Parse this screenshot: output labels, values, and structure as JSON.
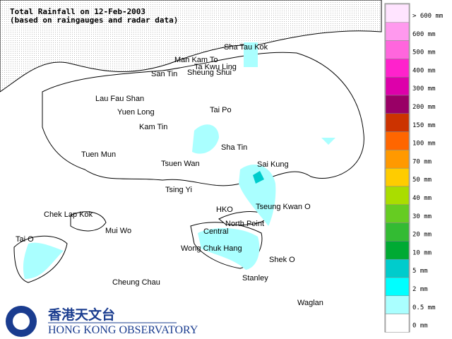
{
  "title": {
    "line1": "Total Rainfall on 12-Feb-2003",
    "line2": "(based on raingauges and radar data)"
  },
  "places": [
    {
      "label": "Sha Tau Kok"
    },
    {
      "label": "Man Kam To"
    },
    {
      "label": "Ta Kwu Ling"
    },
    {
      "label": "San Tin"
    },
    {
      "label": "Sheung Shui"
    },
    {
      "label": "Lau Fau Shan"
    },
    {
      "label": "Yuen Long"
    },
    {
      "label": "Tai Po"
    },
    {
      "label": "Kam Tin"
    },
    {
      "label": "Sha Tin"
    },
    {
      "label": "Tuen Mun"
    },
    {
      "label": "Tsuen Wan"
    },
    {
      "label": "Sai Kung"
    },
    {
      "label": "Tsing Yi"
    },
    {
      "label": "HKO"
    },
    {
      "label": "Tseung Kwan O"
    },
    {
      "label": "Chek Lap Kok"
    },
    {
      "label": "North Point"
    },
    {
      "label": "Mui Wo"
    },
    {
      "label": "Central"
    },
    {
      "label": "Tai O"
    },
    {
      "label": "Wong Chuk Hang"
    },
    {
      "label": "Shek O"
    },
    {
      "label": "Cheung Chau"
    },
    {
      "label": "Stanley"
    },
    {
      "label": "Waglan"
    }
  ],
  "legend": [
    {
      "label": "> 600 mm",
      "color": "#ffe4ff"
    },
    {
      "label": "600 mm",
      "color": "#ff99ee"
    },
    {
      "label": "500 mm",
      "color": "#ff66dd"
    },
    {
      "label": "400 mm",
      "color": "#ff22cc"
    },
    {
      "label": "300 mm",
      "color": "#dd00aa"
    },
    {
      "label": "200 mm",
      "color": "#990066"
    },
    {
      "label": "150 mm",
      "color": "#cc3300"
    },
    {
      "label": "100 mm",
      "color": "#ff6600"
    },
    {
      "label": "70 mm",
      "color": "#ff9900"
    },
    {
      "label": "50 mm",
      "color": "#ffcc00"
    },
    {
      "label": "40 mm",
      "color": "#aadd00"
    },
    {
      "label": "30 mm",
      "color": "#66cc22"
    },
    {
      "label": "20 mm",
      "color": "#33bb33"
    },
    {
      "label": "10 mm",
      "color": "#00aa33"
    },
    {
      "label": "5 mm",
      "color": "#00cccc"
    },
    {
      "label": "2 mm",
      "color": "#00ffff"
    },
    {
      "label": "0.5 mm",
      "color": "#aaffff"
    },
    {
      "label": "0 mm",
      "color": "#ffffff"
    }
  ],
  "logo": {
    "chinese": "香港天文台",
    "english": "HONG KONG OBSERVATORY"
  }
}
